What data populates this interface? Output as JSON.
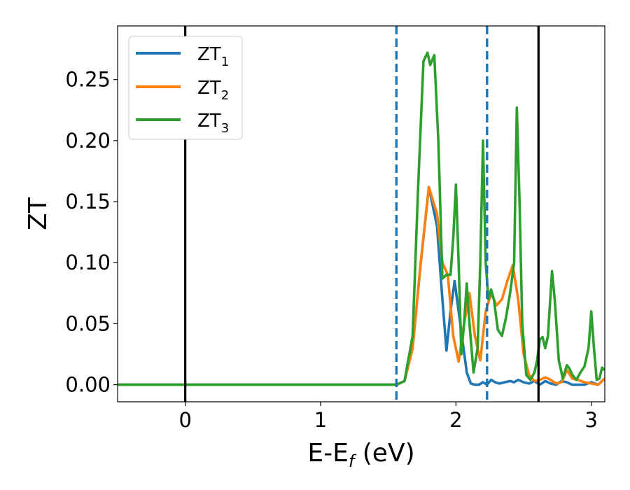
{
  "chart_data": {
    "type": "line",
    "title": "",
    "xlabel": {
      "main": "E-E",
      "sub": "f",
      "unit": " (eV)"
    },
    "ylabel": "ZT",
    "xlim": [
      -0.5,
      3.1
    ],
    "ylim": [
      -0.014,
      0.294
    ],
    "xticks": [
      0,
      1,
      2,
      3
    ],
    "xtick_labels": [
      "0",
      "1",
      "2",
      "3"
    ],
    "yticks": [
      0.0,
      0.05,
      0.1,
      0.15,
      0.2,
      0.25
    ],
    "ytick_labels": [
      "0.00",
      "0.05",
      "0.10",
      "0.15",
      "0.20",
      "0.25"
    ],
    "grid": false,
    "legend_position": "top-left",
    "vertical_lines": [
      {
        "x": 0.0,
        "style": "solid",
        "color": "#000000"
      },
      {
        "x": 2.61,
        "style": "solid",
        "color": "#000000"
      },
      {
        "x": 1.56,
        "style": "dashed",
        "color": "#1f77b4"
      },
      {
        "x": 2.23,
        "style": "dashed",
        "color": "#1f77b4"
      }
    ],
    "series": [
      {
        "name": "ZT",
        "name_sub": "1",
        "color": "#1f77b4",
        "x": [
          -0.5,
          1.4,
          1.5,
          1.56,
          1.62,
          1.68,
          1.74,
          1.8,
          1.86,
          1.9,
          1.93,
          1.96,
          1.99,
          2.02,
          2.05,
          2.08,
          2.11,
          2.14,
          2.17,
          2.2,
          2.23,
          2.26,
          2.29,
          2.32,
          2.36,
          2.4,
          2.43,
          2.46,
          2.5,
          2.54,
          2.58,
          2.62,
          2.66,
          2.7,
          2.74,
          2.78,
          2.82,
          2.86,
          2.9,
          2.95,
          3.0,
          3.05,
          3.1
        ],
        "y": [
          0.0,
          0.0,
          0.0,
          0.0,
          0.003,
          0.03,
          0.1,
          0.162,
          0.13,
          0.07,
          0.028,
          0.06,
          0.085,
          0.06,
          0.035,
          0.01,
          0.001,
          0.0,
          0.0,
          0.002,
          0.0,
          0.004,
          0.002,
          0.001,
          0.002,
          0.003,
          0.002,
          0.004,
          0.002,
          0.001,
          0.003,
          0.0,
          0.003,
          0.001,
          0.0,
          0.003,
          0.002,
          0.0,
          0.0,
          0.0,
          0.002,
          0.0,
          0.005
        ]
      },
      {
        "name": "ZT",
        "name_sub": "2",
        "color": "#ff7f0e",
        "x": [
          -0.5,
          1.4,
          1.5,
          1.56,
          1.62,
          1.68,
          1.74,
          1.8,
          1.86,
          1.9,
          1.94,
          1.98,
          2.02,
          2.06,
          2.1,
          2.14,
          2.18,
          2.22,
          2.26,
          2.3,
          2.34,
          2.38,
          2.42,
          2.46,
          2.5,
          2.54,
          2.58,
          2.62,
          2.66,
          2.7,
          2.74,
          2.78,
          2.82,
          2.86,
          2.9,
          2.95,
          3.0,
          3.05,
          3.1
        ],
        "y": [
          0.0,
          0.0,
          0.0,
          0.0,
          0.003,
          0.03,
          0.1,
          0.162,
          0.14,
          0.1,
          0.09,
          0.04,
          0.019,
          0.05,
          0.075,
          0.04,
          0.02,
          0.06,
          0.075,
          0.065,
          0.07,
          0.085,
          0.098,
          0.07,
          0.025,
          0.008,
          0.003,
          0.004,
          0.006,
          0.004,
          0.001,
          0.002,
          0.012,
          0.005,
          0.004,
          0.002,
          0.001,
          0.0,
          0.005
        ]
      },
      {
        "name": "ZT",
        "name_sub": "3",
        "color": "#2ca02c",
        "x": [
          -0.5,
          1.4,
          1.5,
          1.56,
          1.62,
          1.68,
          1.72,
          1.76,
          1.79,
          1.81,
          1.84,
          1.87,
          1.9,
          1.93,
          1.96,
          1.98,
          2.0,
          2.02,
          2.04,
          2.06,
          2.08,
          2.1,
          2.13,
          2.16,
          2.18,
          2.2,
          2.22,
          2.24,
          2.26,
          2.28,
          2.31,
          2.34,
          2.37,
          2.4,
          2.43,
          2.45,
          2.47,
          2.49,
          2.52,
          2.55,
          2.58,
          2.6,
          2.62,
          2.64,
          2.66,
          2.68,
          2.71,
          2.73,
          2.76,
          2.79,
          2.82,
          2.84,
          2.86,
          2.89,
          2.92,
          2.95,
          2.98,
          3.0,
          3.02,
          3.04,
          3.06,
          3.08,
          3.1
        ],
        "y": [
          0.0,
          0.0,
          0.0,
          0.0,
          0.003,
          0.04,
          0.16,
          0.265,
          0.272,
          0.262,
          0.27,
          0.2,
          0.087,
          0.09,
          0.09,
          0.12,
          0.164,
          0.1,
          0.025,
          0.05,
          0.083,
          0.05,
          0.01,
          0.03,
          0.1,
          0.2,
          0.1,
          0.07,
          0.078,
          0.07,
          0.045,
          0.04,
          0.055,
          0.075,
          0.1,
          0.227,
          0.15,
          0.05,
          0.008,
          0.004,
          0.01,
          0.02,
          0.037,
          0.039,
          0.03,
          0.04,
          0.093,
          0.07,
          0.02,
          0.005,
          0.016,
          0.013,
          0.008,
          0.004,
          0.01,
          0.015,
          0.03,
          0.06,
          0.03,
          0.004,
          0.005,
          0.014,
          0.012
        ]
      }
    ]
  }
}
